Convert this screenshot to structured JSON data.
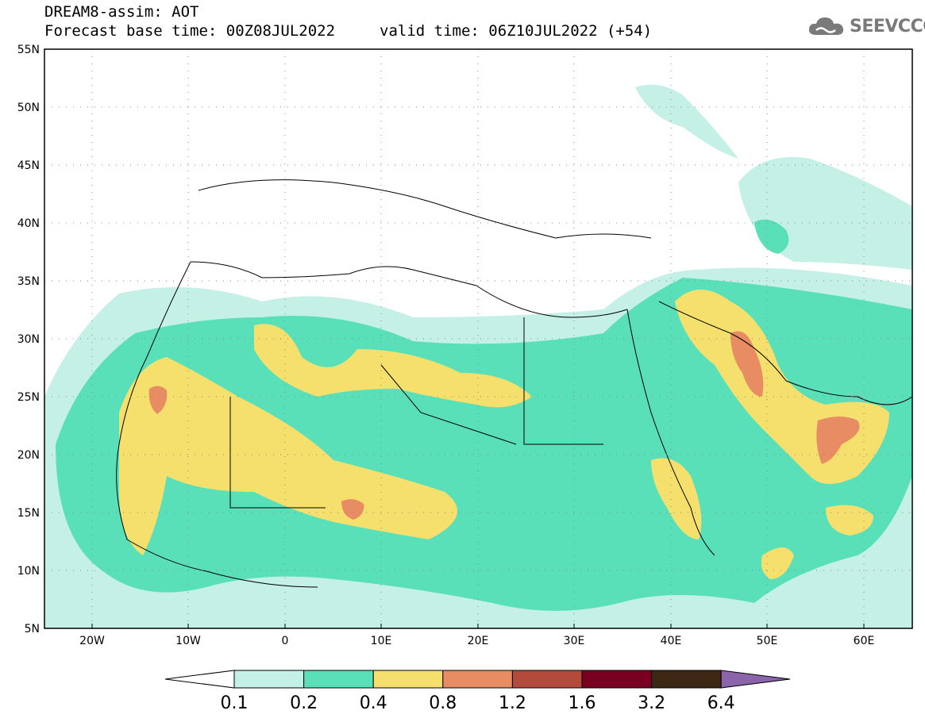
{
  "header": {
    "title": "DREAM8-assim: AOT",
    "base_time": "Forecast base time: 00Z08JUL2022",
    "valid_time": "valid time: 06Z10JUL2022 (+54)",
    "logo_text": "SEEVCCC",
    "logo_icon": "cloud-icon"
  },
  "map": {
    "region": "North Africa / Middle East / Europe",
    "lon_ticks": [
      "20W",
      "10W",
      "0",
      "10E",
      "20E",
      "30E",
      "40E",
      "50E",
      "60E"
    ],
    "lat_ticks": [
      "55N",
      "50N",
      "45N",
      "40N",
      "35N",
      "30N",
      "25N",
      "20N",
      "15N",
      "10N",
      "5N"
    ],
    "lon_range": [
      -25,
      65
    ],
    "lat_range": [
      5,
      55
    ],
    "grid": "dotted"
  },
  "colorbar": {
    "levels": [
      "0.1",
      "0.2",
      "0.4",
      "0.8",
      "1.2",
      "1.6",
      "3.2",
      "6.4"
    ],
    "colors": [
      "#ffffff",
      "#c4f0e6",
      "#5ae0b8",
      "#f5e06e",
      "#e88c64",
      "#b44a3c",
      "#7a0022",
      "#3c2614",
      "#8c64aa"
    ]
  }
}
